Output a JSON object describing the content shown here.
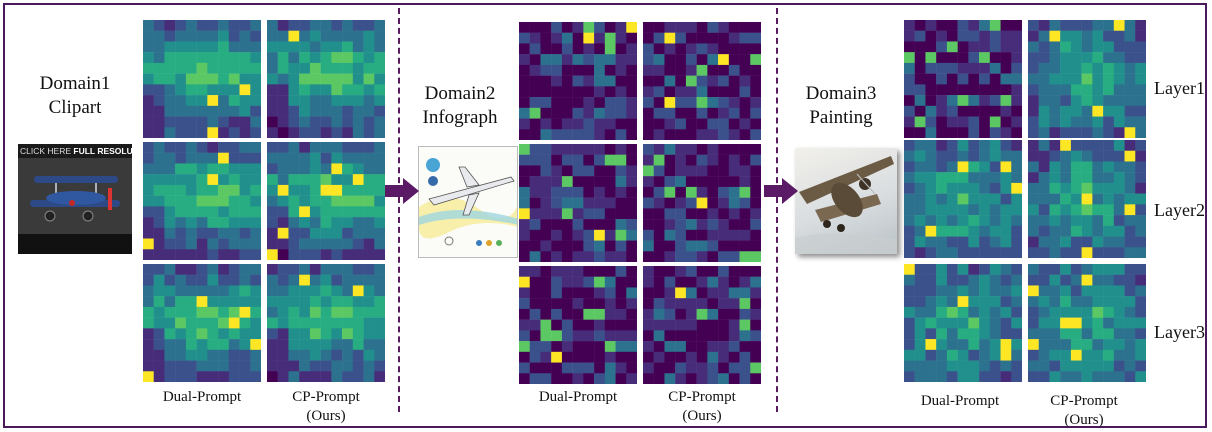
{
  "domains": [
    {
      "name": "Domain1",
      "style": "Clipart"
    },
    {
      "name": "Domain2",
      "style": "Infograph"
    },
    {
      "name": "Domain3",
      "style": "Painting"
    }
  ],
  "layers": [
    "Layer1",
    "Layer2",
    "Layer3"
  ],
  "columns": {
    "dual": "Dual-Prompt",
    "cp_line1": "CP-Prompt",
    "cp_line2": "(Ours)"
  },
  "clipart_banner": {
    "prefix": "CLICK HERE",
    "bold": "FULL RESOLUTION"
  },
  "colors": {
    "frame": "#4a1a5c",
    "separator": "#5a1a5e",
    "arrow": "#5b1a66",
    "colormap": [
      "#440154",
      "#472c7a",
      "#3b518b",
      "#2c718e",
      "#21908d",
      "#27ad81",
      "#5cc863",
      "#aadc32",
      "#fde725"
    ]
  },
  "heatmaps": {
    "grid": 11,
    "colormap": "viridis",
    "maps": [
      {
        "domain": "Domain1",
        "layer": "Layer1",
        "method": "Dual-Prompt",
        "seed": 11,
        "profile": "plane"
      },
      {
        "domain": "Domain1",
        "layer": "Layer1",
        "method": "CP-Prompt",
        "seed": 12,
        "profile": "plane"
      },
      {
        "domain": "Domain1",
        "layer": "Layer2",
        "method": "Dual-Prompt",
        "seed": 13,
        "profile": "plane"
      },
      {
        "domain": "Domain1",
        "layer": "Layer2",
        "method": "CP-Prompt",
        "seed": 14,
        "profile": "plane"
      },
      {
        "domain": "Domain1",
        "layer": "Layer3",
        "method": "Dual-Prompt",
        "seed": 15,
        "profile": "plane"
      },
      {
        "domain": "Domain1",
        "layer": "Layer3",
        "method": "CP-Prompt",
        "seed": 16,
        "profile": "plane"
      },
      {
        "domain": "Domain2",
        "layer": "Layer1",
        "method": "Dual-Prompt",
        "seed": 21,
        "profile": "noise"
      },
      {
        "domain": "Domain2",
        "layer": "Layer1",
        "method": "CP-Prompt",
        "seed": 22,
        "profile": "noise"
      },
      {
        "domain": "Domain2",
        "layer": "Layer2",
        "method": "Dual-Prompt",
        "seed": 23,
        "profile": "noise"
      },
      {
        "domain": "Domain2",
        "layer": "Layer2",
        "method": "CP-Prompt",
        "seed": 24,
        "profile": "noise"
      },
      {
        "domain": "Domain2",
        "layer": "Layer3",
        "method": "Dual-Prompt",
        "seed": 25,
        "profile": "noise"
      },
      {
        "domain": "Domain2",
        "layer": "Layer3",
        "method": "CP-Prompt",
        "seed": 26,
        "profile": "noise"
      },
      {
        "domain": "Domain3",
        "layer": "Layer1",
        "method": "Dual-Prompt",
        "seed": 31,
        "profile": "noise"
      },
      {
        "domain": "Domain3",
        "layer": "Layer1",
        "method": "CP-Prompt",
        "seed": 32,
        "profile": "center"
      },
      {
        "domain": "Domain3",
        "layer": "Layer2",
        "method": "Dual-Prompt",
        "seed": 33,
        "profile": "center"
      },
      {
        "domain": "Domain3",
        "layer": "Layer2",
        "method": "CP-Prompt",
        "seed": 34,
        "profile": "center"
      },
      {
        "domain": "Domain3",
        "layer": "Layer3",
        "method": "Dual-Prompt",
        "seed": 35,
        "profile": "center"
      },
      {
        "domain": "Domain3",
        "layer": "Layer3",
        "method": "CP-Prompt",
        "seed": 36,
        "profile": "center"
      }
    ]
  }
}
